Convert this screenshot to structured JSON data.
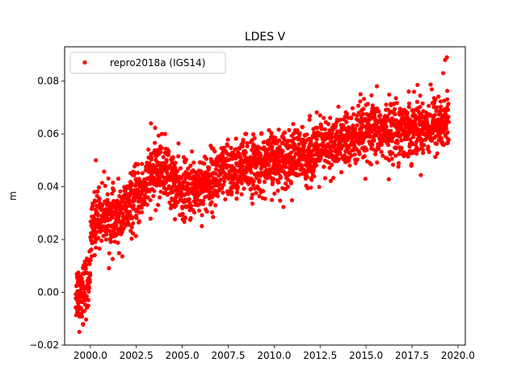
{
  "chart_data": {
    "type": "scatter",
    "title": "LDES V",
    "xlabel": "",
    "ylabel": "m",
    "xlim": [
      1998.6,
      2020.4
    ],
    "ylim": [
      -0.02,
      0.093
    ],
    "x_ticks": [
      2000.0,
      2002.5,
      2005.0,
      2007.5,
      2010.0,
      2012.5,
      2015.0,
      2017.5,
      2020.0
    ],
    "x_tick_labels": [
      "2000.0",
      "2002.5",
      "2005.0",
      "2007.5",
      "2010.0",
      "2012.5",
      "2015.0",
      "2017.5",
      "2020.0"
    ],
    "y_ticks": [
      -0.02,
      0.0,
      0.02,
      0.04,
      0.06,
      0.08
    ],
    "y_tick_labels": [
      "−0.02",
      "0.00",
      "0.02",
      "0.04",
      "0.06",
      "0.08"
    ],
    "grid": false,
    "legend": {
      "placement": "top-left",
      "entries": [
        "repro2018a (IGS14)"
      ]
    },
    "series": [
      {
        "name": "repro2018a (IGS14)",
        "color": "#ff0000",
        "marker": "circle",
        "trend": {
          "x": [
            1999.2,
            1999.6,
            1999.9,
            2000.1,
            2000.4,
            2000.8,
            2001.3,
            2001.8,
            2002.3,
            2002.8,
            2003.2,
            2003.6,
            2004.0,
            2004.4,
            2004.8,
            2005.2,
            2005.7,
            2006.2,
            2006.7,
            2007.2,
            2007.7,
            2008.2,
            2008.7,
            2009.2,
            2009.7,
            2010.2,
            2010.7,
            2011.2,
            2011.7,
            2012.2,
            2012.7,
            2013.2,
            2013.7,
            2014.2,
            2014.7,
            2015.2,
            2015.7,
            2016.2,
            2016.7,
            2017.2,
            2017.7,
            2018.2,
            2018.7,
            2019.2,
            2019.5
          ],
          "y": [
            0.0,
            0.001,
            0.003,
            0.024,
            0.029,
            0.03,
            0.026,
            0.03,
            0.034,
            0.038,
            0.043,
            0.046,
            0.047,
            0.043,
            0.039,
            0.038,
            0.04,
            0.041,
            0.043,
            0.045,
            0.046,
            0.047,
            0.048,
            0.048,
            0.049,
            0.05,
            0.051,
            0.051,
            0.052,
            0.053,
            0.054,
            0.056,
            0.057,
            0.058,
            0.059,
            0.06,
            0.061,
            0.061,
            0.062,
            0.062,
            0.063,
            0.063,
            0.064,
            0.064,
            0.065
          ]
        },
        "spread_sd": 0.0055,
        "extremes": {
          "x": [
            1999.4,
            1999.6,
            2000.3,
            2003.3,
            2012.5,
            2014.7,
            2019.3,
            2019.4,
            2019.2
          ],
          "y": [
            -0.015,
            -0.012,
            0.05,
            0.064,
            0.067,
            0.075,
            0.088,
            0.089,
            0.083
          ]
        }
      }
    ]
  }
}
